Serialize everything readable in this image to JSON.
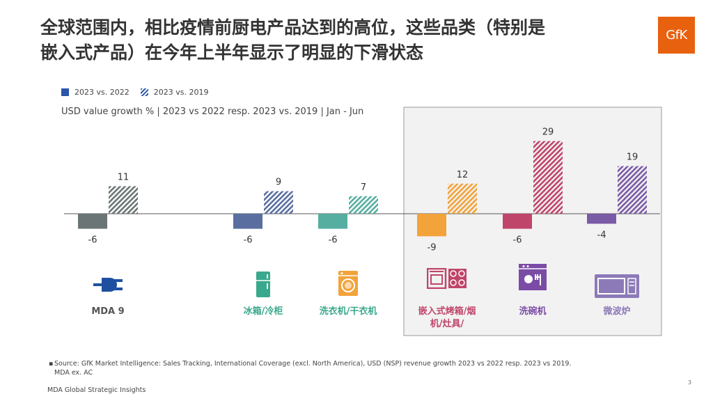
{
  "title": {
    "line1": "全球范围内，相比疫情前厨电产品达到的高位，这些品类（特别是",
    "line2": "嵌入式产品）在今年上半年显示了明显的下滑状态"
  },
  "logo_text": "GfK",
  "legend": {
    "series1": "2023 vs. 2022",
    "series2": "2023 vs. 2019"
  },
  "subtitle": "USD value growth % | 2023 vs 2022 resp. 2023 vs. 2019 | Jan - Jun",
  "source": "Source: GfK Market Intelligence: Sales Tracking, International Coverage (excl. North America), USD (NSP) revenue growth 2023 vs 2022 resp. 2023 vs 2019.",
  "source_line2": "MDA ex. AC",
  "footer": "MDA Global Strategic Insights",
  "page_number": "3",
  "chart_data": {
    "type": "bar",
    "categories": [
      "MDA 9",
      "冰箱/冷柜",
      "洗衣机/干衣机",
      "嵌入式烤箱/烟机/灶具/",
      "洗碗机",
      "微波炉"
    ],
    "category_label_lines": [
      [
        "MDA 9"
      ],
      [
        "冰箱/冷柜"
      ],
      [
        "洗衣机/干衣机"
      ],
      [
        "嵌入式烤箱/烟",
        "机/灶具/"
      ],
      [
        "洗碗机"
      ],
      [
        "微波炉"
      ]
    ],
    "category_colors": [
      "#6b7575",
      "#5a6fa0",
      "#56aea0",
      "#f2a33a",
      "#c0456a",
      "#7a5ba6"
    ],
    "label_colors": [
      "#555555",
      "#3aa88c",
      "#3aa88c",
      "#c0456a",
      "#7a4ca6",
      "#8c7ab8"
    ],
    "icons": [
      "plug-icon",
      "fridge-icon",
      "washing-machine-icon",
      "oven-hob-icon",
      "dishwasher-icon",
      "microwave-icon"
    ],
    "icon_colors": [
      "#1f4fa0",
      "#3aa88c",
      "#f2a33a",
      "#c0456a",
      "#7a4ca6",
      "#8c7ab8"
    ],
    "series": [
      {
        "name": "2023 vs. 2022",
        "values": [
          -6,
          -6,
          -6,
          -9,
          -6,
          -4
        ]
      },
      {
        "name": "2023 vs. 2019",
        "values": [
          11,
          9,
          7,
          12,
          29,
          19
        ]
      }
    ],
    "highlight_categories": [
      3,
      4,
      5
    ]
  }
}
